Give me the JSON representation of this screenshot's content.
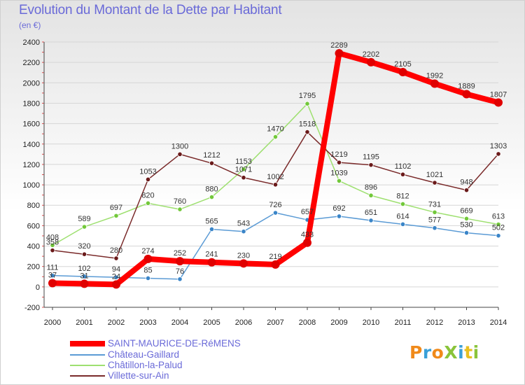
{
  "header": {
    "title": "Evolution du Montant de la Dette par Habitant",
    "subtitle": "(en €)"
  },
  "logo": {
    "text": "ProXiti",
    "colors": [
      "#f08a1a",
      "#3aa0d8",
      "#f08a1a",
      "#8ac43a",
      "#3aa0d8",
      "#e8c020",
      "#8ac43a"
    ]
  },
  "chart_data": {
    "type": "line",
    "title": "Evolution du Montant de la Dette par Habitant",
    "subtitle": "(en €)",
    "xlabel": "",
    "ylabel": "",
    "ylim": [
      -200,
      2400
    ],
    "yticks": [
      -200,
      0,
      200,
      400,
      600,
      800,
      1000,
      1200,
      1400,
      1600,
      1800,
      2000,
      2200,
      2400
    ],
    "grid": true,
    "legend": "bottom-left",
    "x": [
      "2000",
      "2001",
      "2002",
      "2003",
      "2004",
      "2005",
      "2006",
      "2007",
      "2008",
      "2009",
      "2010",
      "2011",
      "2012",
      "2013",
      "2014"
    ],
    "series": [
      {
        "name": "Château-Gaillard",
        "color": "#5b9bd5",
        "marker": "#3a85c8",
        "values": [
          111,
          102,
          94,
          85,
          76,
          565,
          543,
          726,
          657,
          692,
          651,
          614,
          577,
          530,
          502
        ],
        "labels": [
          "111",
          "102",
          "94",
          "85",
          "76",
          "565",
          "543",
          "726",
          "657",
          "692",
          "651",
          "614",
          "577",
          "530",
          "502"
        ]
      },
      {
        "name": "Châtillon-la-Palud",
        "color": "#9ee070",
        "marker": "#72c83a",
        "values": [
          408,
          589,
          697,
          820,
          760,
          880,
          1153,
          1470,
          1795,
          1039,
          896,
          812,
          731,
          669,
          613
        ],
        "labels": [
          "408",
          "589",
          "697",
          "820",
          "760",
          "880",
          "1153",
          "1470",
          "1795",
          "1039",
          "896",
          "812",
          "731",
          "669",
          "613"
        ]
      },
      {
        "name": "Villette-sur-Ain",
        "color": "#7a2a2a",
        "marker": "#6a1a1a",
        "values": [
          358,
          320,
          280,
          1053,
          1300,
          1212,
          1071,
          1002,
          1518,
          1219,
          1195,
          1102,
          1021,
          948,
          1303
        ],
        "labels": [
          "358",
          "320",
          "280",
          "1053",
          "1300",
          "1212",
          "1071",
          "1002",
          "1518",
          "1219",
          "1195",
          "1102",
          "1021",
          "948",
          "1303"
        ]
      },
      {
        "name": "SAINT-MAURICE-DE-RéMENS",
        "color": "#ff0000",
        "marker": "#e00000",
        "values": [
          37,
          31,
          24,
          274,
          252,
          241,
          230,
          219,
          433,
          2289,
          2202,
          2105,
          1992,
          1889,
          1807
        ],
        "labels": [
          "37",
          "31",
          "24",
          "274",
          "252",
          "241",
          "230",
          "219",
          "433",
          "2289",
          "2202",
          "2105",
          "1992",
          "1889",
          "1807"
        ]
      }
    ],
    "legend_entries": [
      {
        "name": "SAINT-MAURICE-DE-RéMENS",
        "color": "#ff0000"
      },
      {
        "name": "Château-Gaillard",
        "color": "#5b9bd5"
      },
      {
        "name": "Châtillon-la-Palud",
        "color": "#9ee070"
      },
      {
        "name": "Villette-sur-Ain",
        "color": "#7a2a2a"
      }
    ]
  }
}
